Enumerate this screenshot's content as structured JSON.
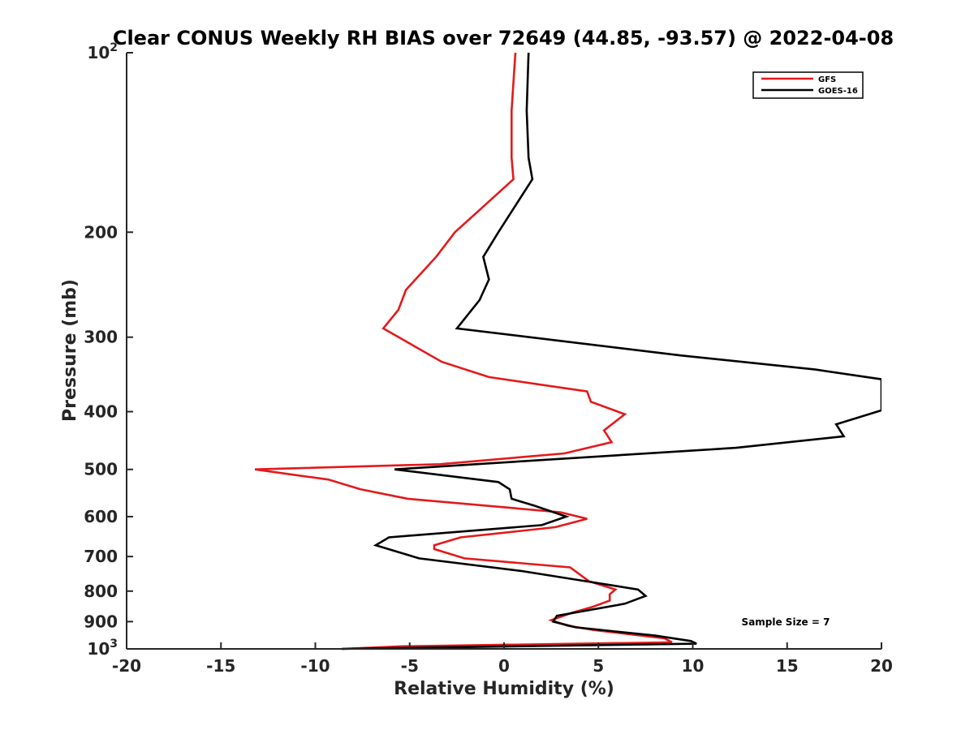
{
  "chart_data": {
    "type": "line",
    "title": "Clear CONUS Weekly RH BIAS over 72649 (44.85, -93.57) @ 2022-04-08",
    "xlabel": "Relative Humidity (%)",
    "ylabel": "Pressure (mb)",
    "xlim": [
      -20,
      20
    ],
    "ylim": [
      100,
      1000
    ],
    "y_scale": "log",
    "y_reversed": true,
    "grid": false,
    "legend_position": "top-right",
    "x_ticks": [
      -20,
      -15,
      -10,
      -5,
      0,
      5,
      10,
      15,
      20
    ],
    "x_tick_labels": [
      "-20",
      "-15",
      "-10",
      "-5",
      "0",
      "5",
      "10",
      "15",
      "20"
    ],
    "y_ticks": [
      100,
      200,
      300,
      400,
      500,
      600,
      700,
      800,
      900,
      1000
    ],
    "y_tick_labels": [
      {
        "base": "10",
        "exp": "2"
      },
      {
        "base": "200",
        "exp": ""
      },
      {
        "base": "300",
        "exp": ""
      },
      {
        "base": "400",
        "exp": ""
      },
      {
        "base": "500",
        "exp": ""
      },
      {
        "base": "600",
        "exp": ""
      },
      {
        "base": "700",
        "exp": ""
      },
      {
        "base": "800",
        "exp": ""
      },
      {
        "base": "900",
        "exp": ""
      },
      {
        "base": "10",
        "exp": "3"
      }
    ],
    "annotation": "Sample Size = 7",
    "series": [
      {
        "name": "GFS",
        "color": "#e31a1c",
        "points": [
          [
            0.6,
            100
          ],
          [
            0.4,
            125
          ],
          [
            0.4,
            150
          ],
          [
            0.5,
            163
          ],
          [
            -1.0,
            180
          ],
          [
            -2.6,
            200
          ],
          [
            -3.6,
            220
          ],
          [
            -5.2,
            250
          ],
          [
            -5.6,
            270
          ],
          [
            -6.4,
            290
          ],
          [
            -3.3,
            330
          ],
          [
            -0.8,
            350
          ],
          [
            4.4,
            370
          ],
          [
            4.6,
            385
          ],
          [
            6.4,
            404
          ],
          [
            5.3,
            430
          ],
          [
            5.7,
            450
          ],
          [
            3.2,
            470
          ],
          [
            -3.4,
            490
          ],
          [
            -13.2,
            500
          ],
          [
            -9.3,
            520
          ],
          [
            -7.6,
            540
          ],
          [
            -5.1,
            560
          ],
          [
            3.0,
            590
          ],
          [
            4.4,
            605
          ],
          [
            2.7,
            625
          ],
          [
            -2.3,
            650
          ],
          [
            -3.7,
            670
          ],
          [
            -3.7,
            680
          ],
          [
            -2.1,
            705
          ],
          [
            3.5,
            730
          ],
          [
            4.5,
            770
          ],
          [
            5.9,
            795
          ],
          [
            5.6,
            810
          ],
          [
            5.6,
            830
          ],
          [
            4.7,
            850
          ],
          [
            3.6,
            870
          ],
          [
            2.5,
            895
          ],
          [
            3.4,
            915
          ],
          [
            4.8,
            930
          ],
          [
            8.5,
            960
          ],
          [
            8.9,
            975
          ],
          [
            -5.4,
            990
          ],
          [
            -8.6,
            1000
          ]
        ]
      },
      {
        "name": "GOES-16",
        "color": "#000000",
        "points": [
          [
            1.3,
            100
          ],
          [
            1.2,
            125
          ],
          [
            1.3,
            150
          ],
          [
            1.5,
            163
          ],
          [
            -0.3,
            200
          ],
          [
            -1.1,
            220
          ],
          [
            -0.8,
            240
          ],
          [
            -1.3,
            260
          ],
          [
            -2.5,
            290
          ],
          [
            9.4,
            322
          ],
          [
            16.5,
            340
          ],
          [
            20.0,
            353
          ],
          [
            20.0,
            398
          ],
          [
            17.6,
            420
          ],
          [
            18.0,
            440
          ],
          [
            12.3,
            460
          ],
          [
            -1.5,
            490
          ],
          [
            -5.8,
            500
          ],
          [
            -0.3,
            525
          ],
          [
            0.3,
            540
          ],
          [
            0.4,
            560
          ],
          [
            1.6,
            575
          ],
          [
            3.3,
            600
          ],
          [
            2.0,
            620
          ],
          [
            -6.1,
            650
          ],
          [
            -6.8,
            670
          ],
          [
            -4.5,
            705
          ],
          [
            0.9,
            740
          ],
          [
            3.2,
            760
          ],
          [
            6.0,
            785
          ],
          [
            7.1,
            795
          ],
          [
            7.5,
            815
          ],
          [
            6.4,
            840
          ],
          [
            2.8,
            880
          ],
          [
            2.6,
            900
          ],
          [
            3.8,
            920
          ],
          [
            8.0,
            950
          ],
          [
            9.9,
            970
          ],
          [
            10.2,
            980
          ],
          [
            -8.6,
            1000
          ]
        ]
      }
    ]
  }
}
